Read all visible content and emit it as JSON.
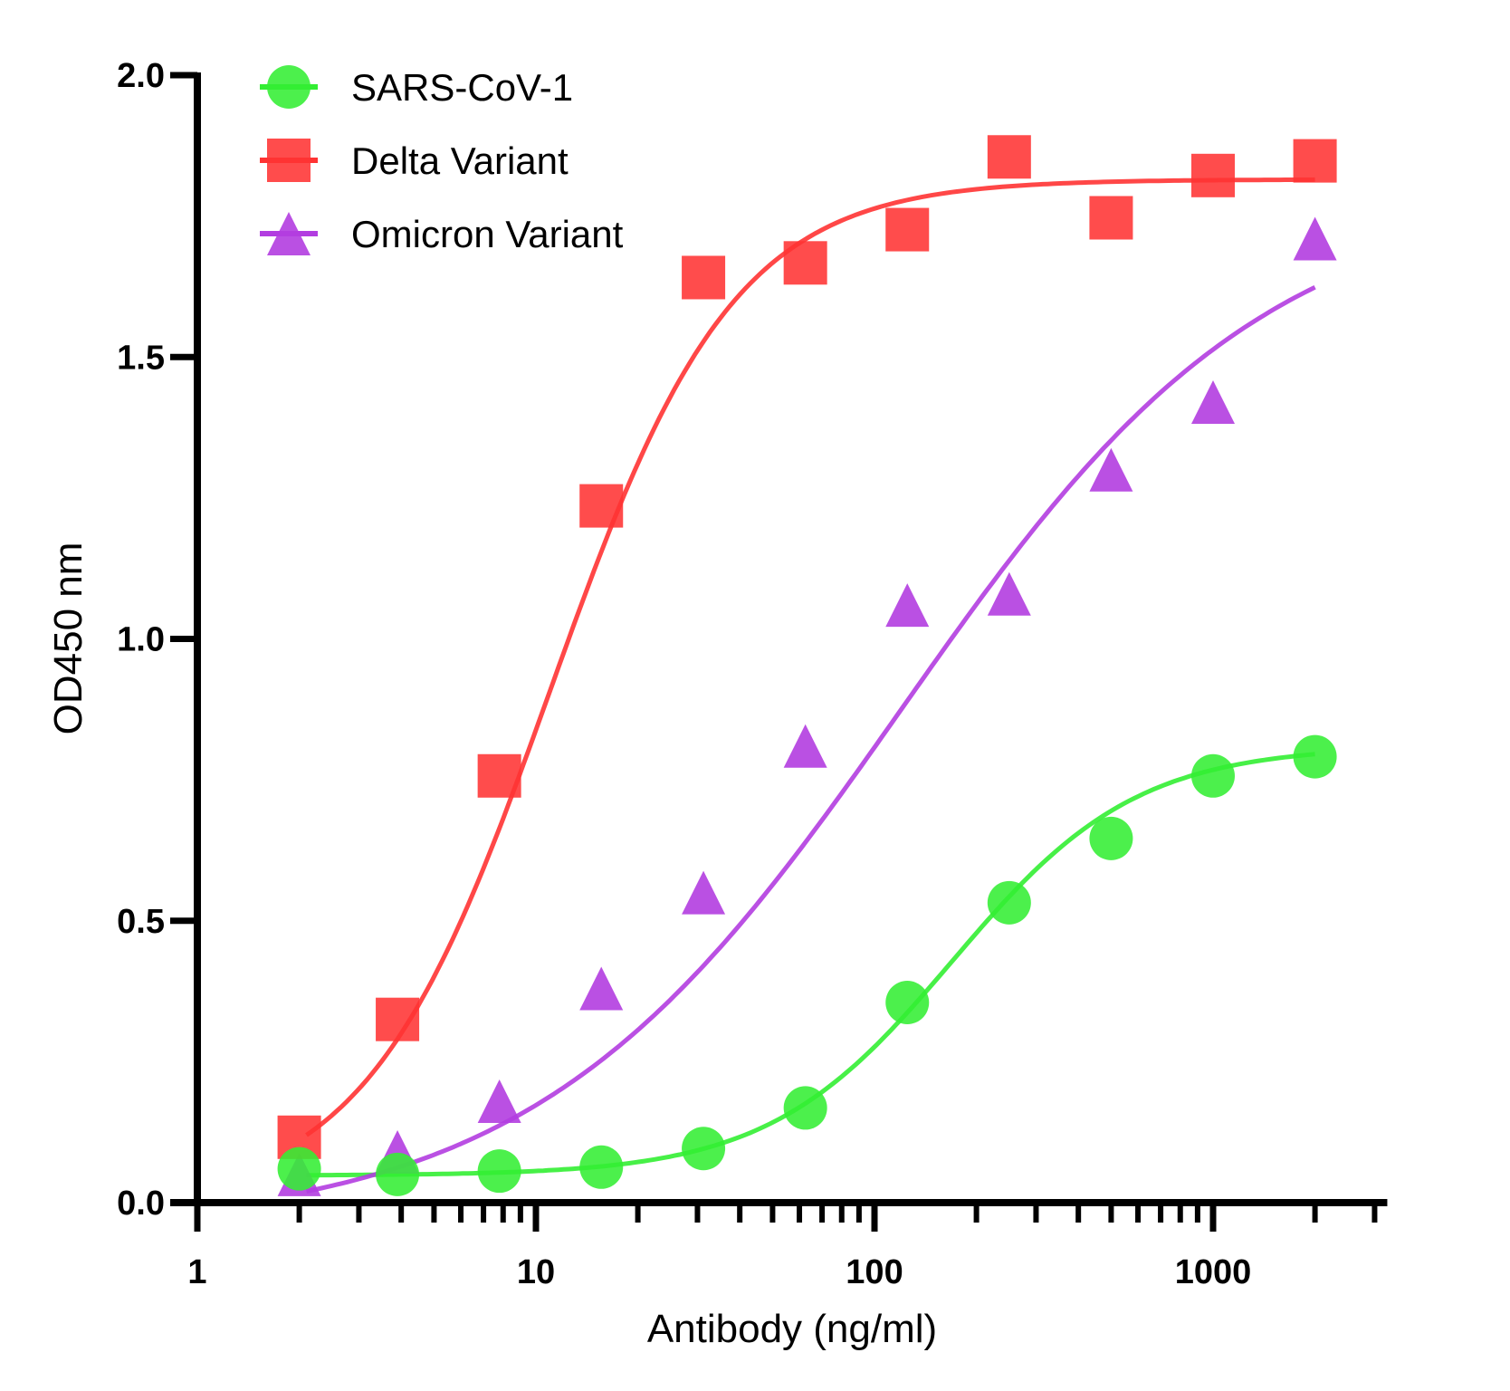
{
  "chart_data": {
    "type": "scatter",
    "xlabel": "Antibody (ng/ml)",
    "ylabel": "OD450 nm",
    "xscale": "log",
    "xlim": [
      1,
      3000
    ],
    "ylim": [
      0,
      2.0
    ],
    "xticks": [
      1,
      10,
      100,
      1000
    ],
    "xtick_labels": [
      "1",
      "10",
      "100",
      "1000"
    ],
    "yticks": [
      0,
      0.5,
      1.0,
      1.5,
      2.0
    ],
    "ytick_labels": [
      "0.0",
      "0.5",
      "1.0",
      "1.5",
      "2.0"
    ],
    "grid": false,
    "legend_position": "top-left",
    "x": [
      2,
      3.9,
      7.8,
      15.6,
      31.25,
      62.5,
      125,
      250,
      500,
      1000,
      2000
    ],
    "series": [
      {
        "name": "SARS-CoV-1",
        "marker": "circle",
        "color": "#33ee33",
        "values": [
          0.06,
          0.05,
          0.056,
          0.063,
          0.096,
          0.168,
          0.355,
          0.532,
          0.646,
          0.757,
          0.791
        ],
        "fit": {
          "bottom": 0.048,
          "top": 0.81,
          "ec50": 170,
          "hill": 1.6
        }
      },
      {
        "name": "Delta Variant",
        "marker": "square",
        "color": "#ff3333",
        "values": [
          0.116,
          0.325,
          0.757,
          1.236,
          1.641,
          1.667,
          1.726,
          1.855,
          1.747,
          1.822,
          1.848
        ],
        "fit": {
          "bottom": 0.0,
          "top": 1.815,
          "ec50": 11,
          "hill": 1.6
        }
      },
      {
        "name": "Omicron Variant",
        "marker": "triangle",
        "color": "#b23de0",
        "values": [
          0.05,
          0.09,
          0.18,
          0.38,
          0.55,
          0.81,
          1.06,
          1.08,
          1.3,
          1.42,
          1.71
        ],
        "fit": {
          "bottom": -0.05,
          "top": 1.8,
          "ec50": 120,
          "hill": 0.8
        }
      }
    ]
  }
}
